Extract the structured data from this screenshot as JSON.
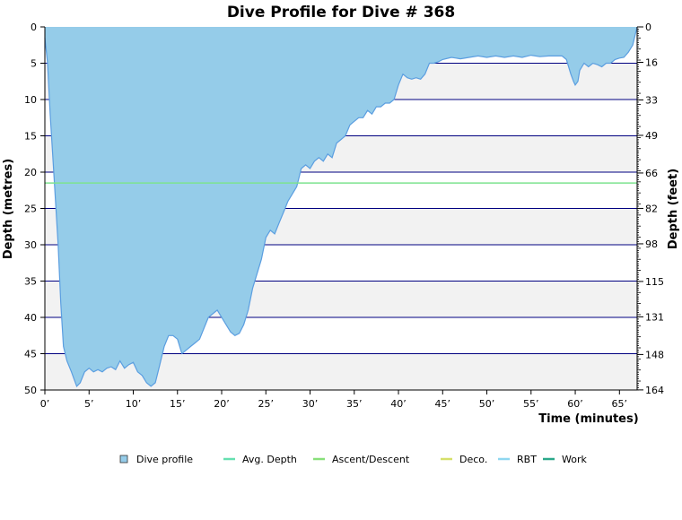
{
  "chart_data": {
    "type": "area",
    "title": "Dive Profile for Dive # 368",
    "xlabel": "Time (minutes)",
    "ylabel_left": "Depth (metres)",
    "ylabel_right": "Depth (feet)",
    "xlim": [
      0,
      67
    ],
    "ylim": [
      0,
      50
    ],
    "y_inverted": true,
    "x_ticks": [
      {
        "v": 0,
        "label": "0’"
      },
      {
        "v": 5,
        "label": "5’"
      },
      {
        "v": 10,
        "label": "10’"
      },
      {
        "v": 15,
        "label": "15’"
      },
      {
        "v": 20,
        "label": "20’"
      },
      {
        "v": 25,
        "label": "25’"
      },
      {
        "v": 30,
        "label": "30’"
      },
      {
        "v": 35,
        "label": "35’"
      },
      {
        "v": 40,
        "label": "40’"
      },
      {
        "v": 45,
        "label": "45’"
      },
      {
        "v": 50,
        "label": "50’"
      },
      {
        "v": 55,
        "label": "55’"
      },
      {
        "v": 60,
        "label": "60’"
      },
      {
        "v": 65,
        "label": "65’"
      }
    ],
    "y_ticks_left": [
      {
        "v": 0,
        "label": "0"
      },
      {
        "v": 5,
        "label": "5"
      },
      {
        "v": 10,
        "label": "10"
      },
      {
        "v": 15,
        "label": "15"
      },
      {
        "v": 20,
        "label": "20"
      },
      {
        "v": 25,
        "label": "25"
      },
      {
        "v": 30,
        "label": "30"
      },
      {
        "v": 35,
        "label": "35"
      },
      {
        "v": 40,
        "label": "40"
      },
      {
        "v": 45,
        "label": "45"
      },
      {
        "v": 50,
        "label": "50"
      }
    ],
    "y_ticks_right": [
      {
        "v": 0,
        "label": "0"
      },
      {
        "v": 16,
        "label": "16"
      },
      {
        "v": 33,
        "label": "33"
      },
      {
        "v": 49,
        "label": "49"
      },
      {
        "v": 66,
        "label": "66"
      },
      {
        "v": 82,
        "label": "82"
      },
      {
        "v": 98,
        "label": "98"
      },
      {
        "v": 115,
        "label": "115"
      },
      {
        "v": 131,
        "label": "131"
      },
      {
        "v": 148,
        "label": "148"
      },
      {
        "v": 164,
        "label": "164"
      }
    ],
    "avg_depth": 21.5,
    "series": [
      {
        "name": "Dive profile",
        "color": "#95cce9",
        "line_color": "#5b9ee0",
        "points": [
          [
            0,
            1.5
          ],
          [
            0.3,
            5
          ],
          [
            0.6,
            12
          ],
          [
            1,
            20
          ],
          [
            1.5,
            30
          ],
          [
            1.8,
            38
          ],
          [
            2.1,
            44
          ],
          [
            2.5,
            46
          ],
          [
            3,
            47.5
          ],
          [
            3.3,
            48.5
          ],
          [
            3.6,
            49.5
          ],
          [
            4,
            49
          ],
          [
            4.5,
            47.5
          ],
          [
            5,
            47
          ],
          [
            5.5,
            47.5
          ],
          [
            6,
            47.2
          ],
          [
            6.5,
            47.5
          ],
          [
            7,
            47
          ],
          [
            7.5,
            46.8
          ],
          [
            8,
            47.2
          ],
          [
            8.5,
            46
          ],
          [
            9,
            47
          ],
          [
            9.5,
            46.5
          ],
          [
            10,
            46.2
          ],
          [
            10.5,
            47.5
          ],
          [
            11,
            48
          ],
          [
            11.5,
            49
          ],
          [
            12,
            49.5
          ],
          [
            12.5,
            49
          ],
          [
            13,
            46.5
          ],
          [
            13.5,
            44
          ],
          [
            14,
            42.5
          ],
          [
            14.5,
            42.5
          ],
          [
            15,
            43
          ],
          [
            15.5,
            45
          ],
          [
            16,
            44.5
          ],
          [
            16.5,
            44
          ],
          [
            17,
            43.5
          ],
          [
            17.5,
            43
          ],
          [
            18,
            41.5
          ],
          [
            18.5,
            40
          ],
          [
            19,
            39.5
          ],
          [
            19.5,
            39
          ],
          [
            20,
            40
          ],
          [
            20.5,
            41
          ],
          [
            21,
            42
          ],
          [
            21.5,
            42.5
          ],
          [
            22,
            42.2
          ],
          [
            22.5,
            41
          ],
          [
            23,
            39
          ],
          [
            23.5,
            36
          ],
          [
            24,
            34
          ],
          [
            24.5,
            32
          ],
          [
            25,
            29
          ],
          [
            25.5,
            28
          ],
          [
            26,
            28.5
          ],
          [
            26.5,
            27
          ],
          [
            27,
            25.5
          ],
          [
            27.5,
            24
          ],
          [
            28,
            23
          ],
          [
            28.5,
            22
          ],
          [
            29,
            19.5
          ],
          [
            29.5,
            19
          ],
          [
            30,
            19.5
          ],
          [
            30.5,
            18.5
          ],
          [
            31,
            18
          ],
          [
            31.5,
            18.5
          ],
          [
            32,
            17.5
          ],
          [
            32.5,
            18
          ],
          [
            33,
            16
          ],
          [
            33.5,
            15.5
          ],
          [
            34,
            15
          ],
          [
            34.5,
            13.5
          ],
          [
            35,
            13
          ],
          [
            35.5,
            12.5
          ],
          [
            36,
            12.5
          ],
          [
            36.5,
            11.5
          ],
          [
            37,
            12
          ],
          [
            37.5,
            11
          ],
          [
            38,
            11
          ],
          [
            38.5,
            10.5
          ],
          [
            39,
            10.5
          ],
          [
            39.5,
            10
          ],
          [
            40,
            8
          ],
          [
            40.5,
            6.5
          ],
          [
            41,
            7
          ],
          [
            41.5,
            7.2
          ],
          [
            42,
            7
          ],
          [
            42.5,
            7.2
          ],
          [
            43,
            6.5
          ],
          [
            43.5,
            5
          ],
          [
            44,
            5
          ],
          [
            44.5,
            4.8
          ],
          [
            45,
            4.5
          ],
          [
            46,
            4.2
          ],
          [
            47,
            4.4
          ],
          [
            48,
            4.2
          ],
          [
            49,
            4
          ],
          [
            50,
            4.2
          ],
          [
            51,
            4
          ],
          [
            52,
            4.2
          ],
          [
            53,
            4
          ],
          [
            54,
            4.2
          ],
          [
            55,
            3.9
          ],
          [
            56,
            4.1
          ],
          [
            57,
            4
          ],
          [
            58,
            4
          ],
          [
            58.5,
            4
          ],
          [
            59,
            4.5
          ],
          [
            59.5,
            6.5
          ],
          [
            59.8,
            7.5
          ],
          [
            60,
            8
          ],
          [
            60.3,
            7.5
          ],
          [
            60.5,
            6
          ],
          [
            61,
            5
          ],
          [
            61.5,
            5.5
          ],
          [
            62,
            5
          ],
          [
            62.5,
            5.2
          ],
          [
            63,
            5.5
          ],
          [
            63.5,
            5
          ],
          [
            64,
            5
          ],
          [
            64.5,
            4.5
          ],
          [
            65,
            4.3
          ],
          [
            65.5,
            4.2
          ],
          [
            66,
            3.5
          ],
          [
            66.5,
            2.5
          ],
          [
            67,
            0
          ]
        ]
      }
    ],
    "legend": {
      "placement": "bottom",
      "items": [
        {
          "label": "Dive profile",
          "color": "#95cce9",
          "kind": "box"
        },
        {
          "label": "Avg. Depth",
          "color": "#66e0b0",
          "kind": "line"
        },
        {
          "label": "Ascent/Descent",
          "color": "#88e07a",
          "kind": "line"
        },
        {
          "label": "Deco.",
          "color": "#d6e06a",
          "kind": "line"
        },
        {
          "label": "RBT",
          "color": "#8fd7f0",
          "kind": "line"
        },
        {
          "label": "Work",
          "color": "#2ba88a",
          "kind": "line"
        }
      ]
    },
    "colors": {
      "gridline": "#000080",
      "band_alt": "#f2f2f2",
      "avg_line": "#7de38f",
      "axis": "#000000"
    }
  }
}
